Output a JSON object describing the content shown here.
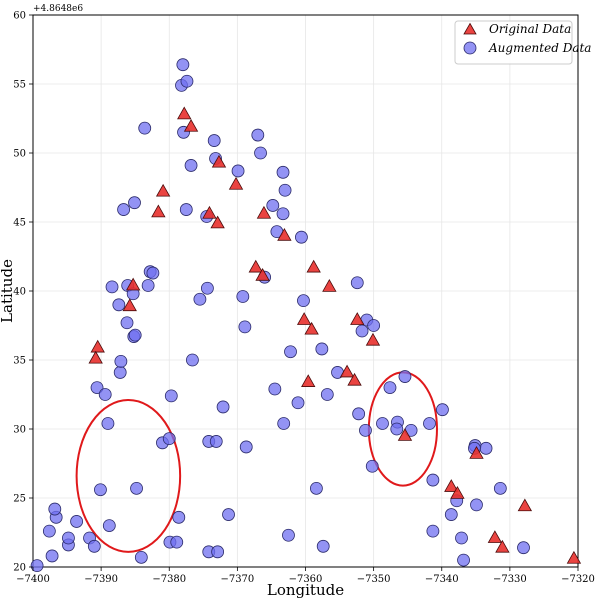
{
  "chart_data": {
    "type": "scatter",
    "xlabel": "Longitude",
    "ylabel": "Latitude",
    "y_offset_text": "+4.8648e6",
    "xlim": [
      -7400,
      -7320
    ],
    "ylim": [
      20,
      60
    ],
    "x_ticks": [
      -7400,
      -7390,
      -7380,
      -7370,
      -7360,
      -7350,
      -7340,
      -7330,
      -7320
    ],
    "y_ticks": [
      20,
      25,
      30,
      35,
      40,
      45,
      50,
      55,
      60
    ],
    "grid": true,
    "legend_position": "top-right",
    "series": [
      {
        "name": "Original Data",
        "marker": "triangle",
        "color": "#e8302c",
        "points": [
          [
            -7390.5,
            35.9
          ],
          [
            -7390.8,
            35.1
          ],
          [
            -7385.3,
            40.4
          ],
          [
            -7385.8,
            38.9
          ],
          [
            -7380.9,
            47.2
          ],
          [
            -7381.6,
            45.7
          ],
          [
            -7377.8,
            52.8
          ],
          [
            -7376.8,
            51.9
          ],
          [
            -7374.1,
            45.6
          ],
          [
            -7372.9,
            44.9
          ],
          [
            -7372.7,
            49.3
          ],
          [
            -7370.2,
            47.7
          ],
          [
            -7367.3,
            41.7
          ],
          [
            -7366.3,
            41.1
          ],
          [
            -7366.1,
            45.6
          ],
          [
            -7363.1,
            44.0
          ],
          [
            -7360.2,
            37.9
          ],
          [
            -7359.1,
            37.2
          ],
          [
            -7359.6,
            33.4
          ],
          [
            -7358.8,
            41.7
          ],
          [
            -7356.5,
            40.3
          ],
          [
            -7353.9,
            34.1
          ],
          [
            -7352.8,
            33.5
          ],
          [
            -7352.4,
            37.9
          ],
          [
            -7350.1,
            36.4
          ],
          [
            -7345.4,
            29.5
          ],
          [
            -7338.6,
            25.8
          ],
          [
            -7337.7,
            25.3
          ],
          [
            -7334.9,
            28.2
          ],
          [
            -7332.2,
            22.1
          ],
          [
            -7331.1,
            21.4
          ],
          [
            -7327.8,
            24.4
          ],
          [
            -7320.6,
            20.6
          ]
        ]
      },
      {
        "name": "Augmented Data",
        "marker": "circle",
        "color": "#6f6ff0",
        "points": [
          [
            -7399.4,
            20.1
          ],
          [
            -7397.6,
            22.6
          ],
          [
            -7396.6,
            23.6
          ],
          [
            -7396.8,
            24.2
          ],
          [
            -7397.2,
            20.8
          ],
          [
            -7394.8,
            21.6
          ],
          [
            -7394.8,
            22.1
          ],
          [
            -7393.6,
            23.3
          ],
          [
            -7391.7,
            22.1
          ],
          [
            -7391.0,
            21.5
          ],
          [
            -7390.1,
            25.6
          ],
          [
            -7389.0,
            30.4
          ],
          [
            -7388.8,
            23.0
          ],
          [
            -7390.6,
            33.0
          ],
          [
            -7389.4,
            32.5
          ],
          [
            -7388.4,
            40.3
          ],
          [
            -7387.4,
            39.0
          ],
          [
            -7387.2,
            34.1
          ],
          [
            -7387.1,
            34.9
          ],
          [
            -7386.1,
            40.4
          ],
          [
            -7386.2,
            37.7
          ],
          [
            -7385.3,
            39.8
          ],
          [
            -7385.2,
            36.7
          ],
          [
            -7385.0,
            36.8
          ],
          [
            -7386.7,
            45.9
          ],
          [
            -7385.1,
            46.4
          ],
          [
            -7383.6,
            51.8
          ],
          [
            -7383.1,
            40.4
          ],
          [
            -7382.8,
            41.4
          ],
          [
            -7382.4,
            41.3
          ],
          [
            -7384.8,
            25.7
          ],
          [
            -7384.1,
            20.7
          ],
          [
            -7381.0,
            29.0
          ],
          [
            -7380.0,
            29.3
          ],
          [
            -7379.9,
            21.8
          ],
          [
            -7379.7,
            32.4
          ],
          [
            -7378.9,
            21.8
          ],
          [
            -7378.6,
            23.6
          ],
          [
            -7378.2,
            54.9
          ],
          [
            -7378.0,
            56.4
          ],
          [
            -7377.4,
            55.2
          ],
          [
            -7377.9,
            51.5
          ],
          [
            -7377.5,
            45.9
          ],
          [
            -7376.8,
            49.1
          ],
          [
            -7376.6,
            35.0
          ],
          [
            -7375.5,
            39.4
          ],
          [
            -7374.5,
            45.4
          ],
          [
            -7374.4,
            40.2
          ],
          [
            -7374.2,
            29.1
          ],
          [
            -7374.2,
            21.1
          ],
          [
            -7373.4,
            50.9
          ],
          [
            -7373.2,
            49.6
          ],
          [
            -7373.1,
            29.1
          ],
          [
            -7372.9,
            21.1
          ],
          [
            -7372.1,
            31.6
          ],
          [
            -7371.3,
            23.8
          ],
          [
            -7369.9,
            48.7
          ],
          [
            -7369.2,
            39.6
          ],
          [
            -7368.9,
            37.4
          ],
          [
            -7368.7,
            28.7
          ],
          [
            -7367.0,
            51.3
          ],
          [
            -7366.6,
            50.0
          ],
          [
            -7366.0,
            41.0
          ],
          [
            -7364.8,
            46.2
          ],
          [
            -7364.5,
            32.9
          ],
          [
            -7364.2,
            44.3
          ],
          [
            -7363.3,
            48.6
          ],
          [
            -7363.3,
            45.6
          ],
          [
            -7363.0,
            47.3
          ],
          [
            -7363.2,
            30.4
          ],
          [
            -7362.5,
            22.3
          ],
          [
            -7362.2,
            35.6
          ],
          [
            -7361.1,
            31.9
          ],
          [
            -7360.6,
            43.9
          ],
          [
            -7360.3,
            39.3
          ],
          [
            -7358.4,
            25.7
          ],
          [
            -7357.6,
            35.8
          ],
          [
            -7357.4,
            21.5
          ],
          [
            -7356.8,
            32.5
          ],
          [
            -7355.3,
            34.1
          ],
          [
            -7352.4,
            40.6
          ],
          [
            -7352.2,
            31.1
          ],
          [
            -7351.7,
            37.1
          ],
          [
            -7351.2,
            29.9
          ],
          [
            -7351.0,
            37.9
          ],
          [
            -7350.2,
            27.3
          ],
          [
            -7350.0,
            37.5
          ],
          [
            -7348.7,
            30.4
          ],
          [
            -7347.6,
            33.0
          ],
          [
            -7346.5,
            30.5
          ],
          [
            -7346.6,
            30.0
          ],
          [
            -7345.4,
            33.8
          ],
          [
            -7344.5,
            29.9
          ],
          [
            -7341.8,
            30.4
          ],
          [
            -7341.3,
            26.3
          ],
          [
            -7341.3,
            22.6
          ],
          [
            -7339.9,
            31.4
          ],
          [
            -7338.6,
            23.8
          ],
          [
            -7337.8,
            24.8
          ],
          [
            -7337.1,
            22.1
          ],
          [
            -7336.8,
            20.5
          ],
          [
            -7335.1,
            28.8
          ],
          [
            -7334.9,
            24.5
          ],
          [
            -7333.5,
            28.6
          ],
          [
            -7331.4,
            25.7
          ],
          [
            -7328.0,
            21.4
          ],
          [
            -7335.2,
            28.6
          ]
        ]
      }
    ],
    "annotations": [
      {
        "shape": "ellipse",
        "color": "#e0191b",
        "cx": -7386,
        "cy": 26.6,
        "rx": 7.6,
        "ry": 5.5
      },
      {
        "shape": "ellipse",
        "color": "#e0191b",
        "cx": -7345.7,
        "cy": 30.0,
        "rx": 5.0,
        "ry": 4.1
      }
    ]
  }
}
